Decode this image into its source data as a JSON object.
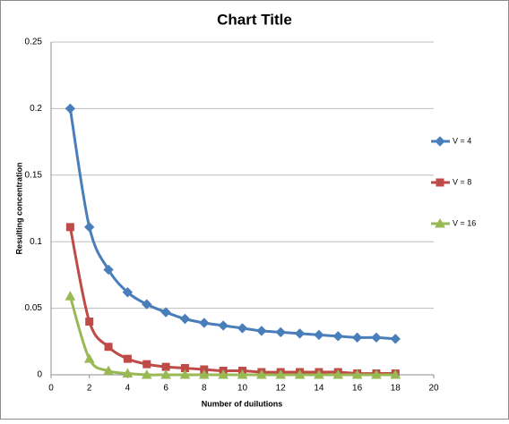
{
  "chart_data": {
    "type": "line",
    "title": "Chart Title",
    "x_label": "Number of duilutions",
    "y_label": "Resulting concentration",
    "x": [
      1,
      2,
      3,
      4,
      5,
      6,
      7,
      8,
      9,
      10,
      11,
      12,
      13,
      14,
      15,
      16,
      17,
      18
    ],
    "series": [
      {
        "name": "V = 4",
        "color": "#4a7ebb",
        "marker": "diamond",
        "values": [
          0.2,
          0.111,
          0.079,
          0.062,
          0.053,
          0.047,
          0.042,
          0.039,
          0.037,
          0.035,
          0.033,
          0.032,
          0.031,
          0.03,
          0.029,
          0.028,
          0.028,
          0.027
        ]
      },
      {
        "name": "V = 8",
        "color": "#be4b48",
        "marker": "square",
        "values": [
          0.111,
          0.04,
          0.021,
          0.012,
          0.008,
          0.006,
          0.005,
          0.004,
          0.003,
          0.003,
          0.002,
          0.002,
          0.002,
          0.002,
          0.002,
          0.001,
          0.001,
          0.001
        ]
      },
      {
        "name": "V = 16",
        "color": "#98b954",
        "marker": "triangle",
        "values": [
          0.059,
          0.012,
          0.003,
          0.001,
          0,
          0,
          0,
          0,
          0,
          0,
          0,
          0,
          0,
          0,
          0,
          0,
          0,
          0
        ]
      }
    ],
    "xlim": [
      0,
      20
    ],
    "xticks": [
      0,
      2,
      4,
      6,
      8,
      10,
      12,
      14,
      16,
      18,
      20
    ],
    "ylim": [
      0,
      0.25
    ],
    "yticks": [
      0,
      0.05,
      0.1,
      0.15,
      0.2,
      0.25
    ],
    "grid": true,
    "legend": "right",
    "smooth": true
  }
}
